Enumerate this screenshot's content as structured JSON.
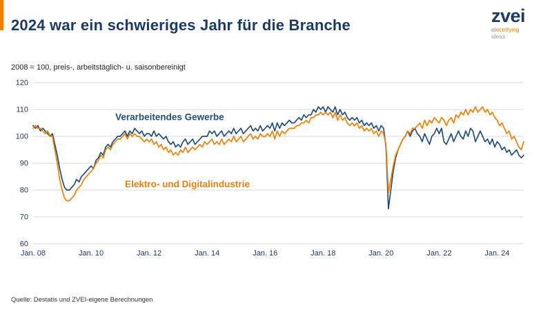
{
  "header": {
    "title": "2024 war ein schwieriges Jahr für die Branche",
    "logo": {
      "text": "zvei",
      "tagline1": "electrifying",
      "tagline2": "ideas"
    }
  },
  "subtitle": "2008 = 100, preis-, arbeitstäglich- u. saisonbereinigt",
  "footer": {
    "source": "Quelle: Destatis und ZVEI-eigene Berechnungen"
  },
  "colors": {
    "brand_blue": "#1b3a66",
    "accent_orange": "#ee7f00",
    "gridline": "#d8d8d8"
  },
  "chart_data": {
    "type": "line",
    "title": "2024 war ein schwieriges Jahr für die Branche",
    "xlabel": "",
    "ylabel": "",
    "ylim": [
      60,
      120
    ],
    "y_ticks": [
      60,
      70,
      80,
      90,
      100,
      110,
      120
    ],
    "grid": true,
    "x_unit": "months from Jan 2008",
    "x_tick_labels": [
      "Jan. 08",
      "Jan. 10",
      "Jan. 12",
      "Jan. 14",
      "Jan. 16",
      "Jan. 18",
      "Jan. 20",
      "Jan. 22",
      "Jan. 24"
    ],
    "x_tick_month_indices": [
      0,
      24,
      48,
      72,
      96,
      120,
      144,
      168,
      192
    ],
    "series": [
      {
        "name": "Verarbeitendes Gewerbe",
        "color": "#1f4e79",
        "values": [
          104,
          103,
          104,
          102,
          103,
          102,
          101,
          100,
          101,
          97,
          93,
          88,
          84,
          81,
          80,
          80,
          81,
          82,
          84,
          83,
          85,
          86,
          87,
          88,
          89,
          88,
          91,
          92,
          94,
          93,
          96,
          97,
          96,
          98,
          99,
          100,
          100,
          101,
          102,
          100,
          102,
          101,
          103,
          102,
          101,
          102,
          100,
          101,
          101,
          100,
          102,
          100,
          101,
          100,
          99,
          100,
          98,
          97,
          98,
          96,
          97,
          96,
          98,
          99,
          97,
          98,
          99,
          97,
          98,
          99,
          100,
          100,
          100,
          102,
          101,
          102,
          100,
          101,
          102,
          100,
          101,
          102,
          101,
          103,
          101,
          102,
          103,
          101,
          102,
          103,
          104,
          102,
          103,
          102,
          104,
          102,
          103,
          104,
          103,
          105,
          102,
          105,
          103,
          105,
          104,
          105,
          106,
          105,
          105,
          106,
          107,
          106,
          108,
          107,
          108,
          108,
          110,
          109,
          111,
          110,
          111,
          109,
          111,
          110,
          109,
          111,
          108,
          110,
          108,
          109,
          107,
          106,
          107,
          106,
          107,
          105,
          106,
          104,
          105,
          104,
          105,
          103,
          104,
          102,
          104,
          103,
          96,
          73,
          80,
          87,
          92,
          95,
          97,
          99,
          100,
          102,
          100,
          102,
          103,
          101,
          100,
          98,
          101,
          99,
          97,
          100,
          101,
          103,
          101,
          103,
          98,
          97,
          99,
          101,
          98,
          100,
          102,
          100,
          99,
          102,
          100,
          103,
          102,
          98,
          100,
          102,
          100,
          98,
          99,
          97,
          99,
          96,
          98,
          97,
          95,
          96,
          94,
          95,
          93,
          94,
          95,
          93,
          92,
          93
        ]
      },
      {
        "name": "Elektro- und Digitalindustrie",
        "color": "#ee7f00",
        "values": [
          103,
          104,
          103,
          103,
          102,
          101,
          102,
          100,
          100,
          95,
          90,
          84,
          80,
          77,
          76,
          76,
          77,
          78,
          80,
          81,
          82,
          84,
          85,
          86,
          87,
          88,
          90,
          91,
          93,
          92,
          95,
          96,
          95,
          97,
          98,
          99,
          99,
          100,
          101,
          99,
          101,
          100,
          101,
          100,
          100,
          99,
          98,
          99,
          98,
          99,
          97,
          98,
          96,
          97,
          95,
          96,
          94,
          95,
          93,
          94,
          93,
          95,
          94,
          96,
          94,
          95,
          96,
          95,
          96,
          97,
          96,
          98,
          97,
          98,
          99,
          97,
          98,
          97,
          99,
          97,
          98,
          99,
          98,
          100,
          98,
          99,
          100,
          98,
          99,
          100,
          101,
          99,
          100,
          99,
          101,
          100,
          100,
          101,
          100,
          102,
          99,
          102,
          100,
          102,
          101,
          102,
          103,
          103,
          103,
          104,
          104,
          105,
          105,
          106,
          105,
          107,
          107,
          108,
          108,
          109,
          108,
          109,
          108,
          109,
          107,
          109,
          106,
          108,
          106,
          107,
          105,
          104,
          105,
          104,
          105,
          103,
          104,
          102,
          103,
          102,
          103,
          101,
          102,
          100,
          102,
          101,
          97,
          79,
          84,
          89,
          93,
          95,
          97,
          99,
          100,
          102,
          101,
          103,
          103,
          104,
          105,
          103,
          106,
          104,
          106,
          105,
          107,
          106,
          105,
          107,
          106,
          104,
          106,
          107,
          105,
          108,
          107,
          109,
          108,
          110,
          108,
          110,
          109,
          111,
          109,
          110,
          111,
          109,
          110,
          108,
          109,
          107,
          106,
          104,
          105,
          103,
          101,
          102,
          99,
          100,
          98,
          96,
          95,
          98
        ]
      }
    ],
    "annotations": [
      {
        "text": "Verarbeitendes Gewerbe",
        "color": "#1f4e79",
        "x_month": 34,
        "value": 106
      },
      {
        "text": "Elektro- und Digitalindustrie",
        "color": "#ee7f00",
        "x_month": 38,
        "value": 81
      }
    ],
    "legend_position": "inline-annotations"
  }
}
